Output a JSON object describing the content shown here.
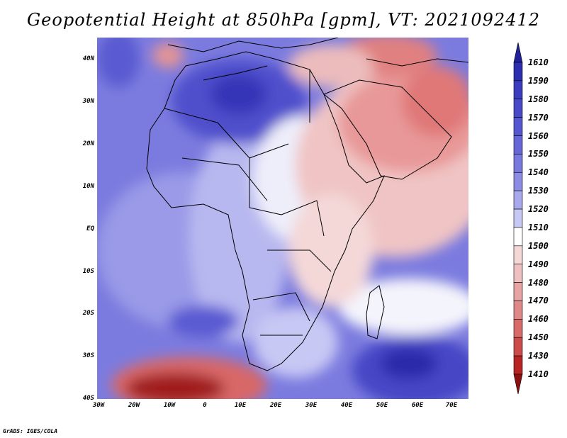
{
  "title": "Geopotential Height at 850hPa [gpm], VT: 2021092412",
  "footer": "GrADS: IGES/COLA",
  "map": {
    "lat_labels": [
      "40N",
      "30N",
      "20N",
      "10N",
      "EQ",
      "10S",
      "20S",
      "30S",
      "40S"
    ],
    "lon_labels": [
      "30W",
      "20W",
      "10W",
      "0",
      "10E",
      "20E",
      "30E",
      "40E",
      "50E",
      "60E",
      "70E"
    ],
    "lat_range": [
      -40,
      45
    ],
    "lon_range": [
      -30,
      75
    ],
    "features": [
      "high-height-sahara",
      "high-height-south-atlantic",
      "high-height-southern-indian-ocean",
      "low-height-arabia",
      "low-height-east-africa",
      "low-height-southeast-atlantic",
      "low-height-mediterranean"
    ]
  },
  "colorbar": {
    "levels": [
      "1610",
      "1590",
      "1580",
      "1570",
      "1560",
      "1550",
      "1540",
      "1530",
      "1520",
      "1510",
      "1500",
      "1490",
      "1480",
      "1470",
      "1460",
      "1450",
      "1430",
      "1410"
    ],
    "colors": [
      "#20209a",
      "#2d2db0",
      "#3b3bbf",
      "#4848c8",
      "#5656d0",
      "#6666d8",
      "#7878de",
      "#8c8ce4",
      "#a8a8ec",
      "#c8c8f4",
      "#ffffff",
      "#f4d8d8",
      "#eec0c0",
      "#e8a4a4",
      "#e08888",
      "#d86a6a",
      "#cc4a4a",
      "#b82424",
      "#8c1010"
    ]
  }
}
